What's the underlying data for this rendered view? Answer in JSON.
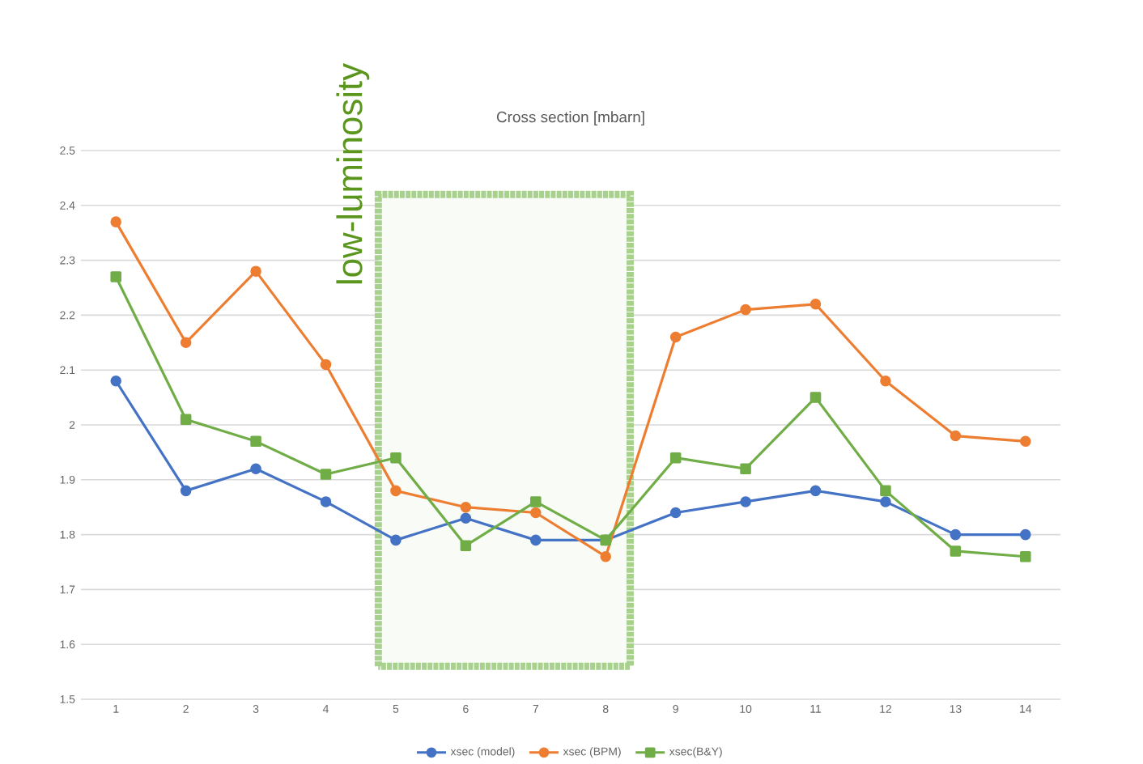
{
  "chart_data": {
    "type": "line",
    "title": "Cross section [mbarn]",
    "x": [
      1,
      2,
      3,
      4,
      5,
      6,
      7,
      8,
      9,
      10,
      11,
      12,
      13,
      14
    ],
    "xlim": [
      0.5,
      14.5
    ],
    "xticks": [
      1,
      2,
      3,
      4,
      5,
      6,
      7,
      8,
      9,
      10,
      11,
      12,
      13,
      14
    ],
    "ylim": [
      1.5,
      2.5
    ],
    "yticks": [
      1.5,
      1.6,
      1.7,
      1.8,
      1.9,
      2,
      2.1,
      2.2,
      2.3,
      2.4,
      2.5
    ],
    "grid": "y",
    "legend": "bottom",
    "line_style": "solid",
    "series": [
      {
        "name": "xsec (model)",
        "color": "#4472c4",
        "marker": "circle",
        "values": [
          2.08,
          1.88,
          1.92,
          1.86,
          1.79,
          1.83,
          1.79,
          1.79,
          1.84,
          1.86,
          1.88,
          1.86,
          1.8,
          1.8
        ]
      },
      {
        "name": "xsec (BPM)",
        "color": "#ed7d31",
        "marker": "circle",
        "values": [
          2.37,
          2.15,
          2.28,
          2.11,
          1.88,
          1.85,
          1.84,
          1.76,
          2.16,
          2.21,
          2.22,
          2.08,
          1.98,
          1.97
        ]
      },
      {
        "name": "xsec(B&Y)",
        "color": "#70ad47",
        "marker": "square",
        "values": [
          2.27,
          2.01,
          1.97,
          1.91,
          1.94,
          1.78,
          1.86,
          1.79,
          1.94,
          1.92,
          2.05,
          1.88,
          1.77,
          1.76
        ]
      }
    ],
    "bands": [
      {
        "axis": "x",
        "from": 4.75,
        "to": 8.35,
        "label": "low-luminosity",
        "color": "#a9d18e"
      }
    ]
  }
}
